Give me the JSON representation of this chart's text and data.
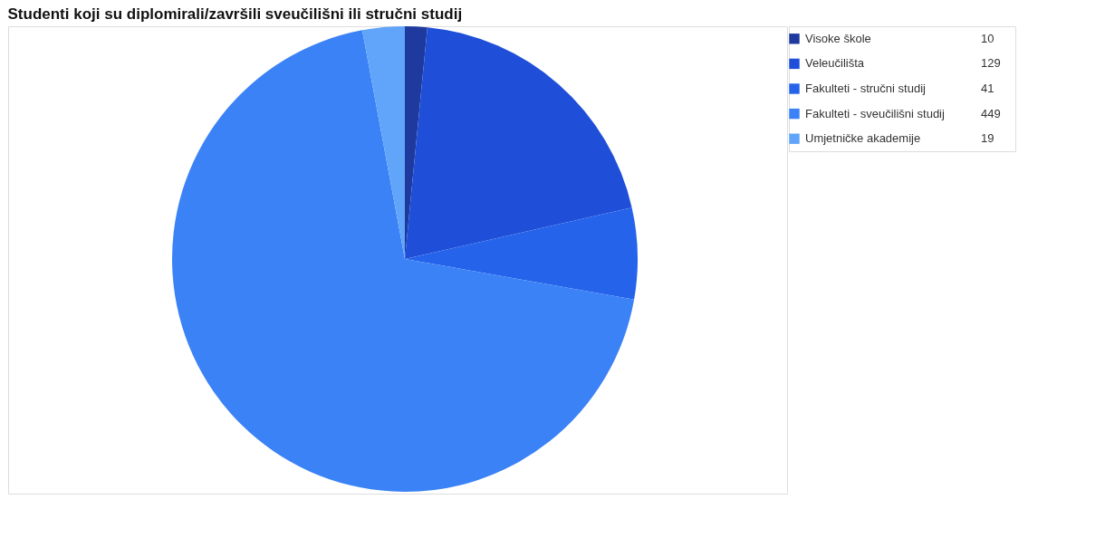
{
  "chart_data": {
    "type": "pie",
    "title": "Studenti koji su diplomirali/završili sveučilišni ili stručni studij",
    "categories": [
      "Visoke škole",
      "Veleučilišta",
      "Fakulteti - stručni studij",
      "Fakulteti - sveučilišni studij",
      "Umjetničke akademije"
    ],
    "values": [
      10,
      129,
      41,
      449,
      19
    ],
    "colors": [
      "#1e3a9e",
      "#1f4fd8",
      "#2563eb",
      "#3b82f6",
      "#60a5fa"
    ],
    "data_labels": true,
    "legend": "top right"
  }
}
